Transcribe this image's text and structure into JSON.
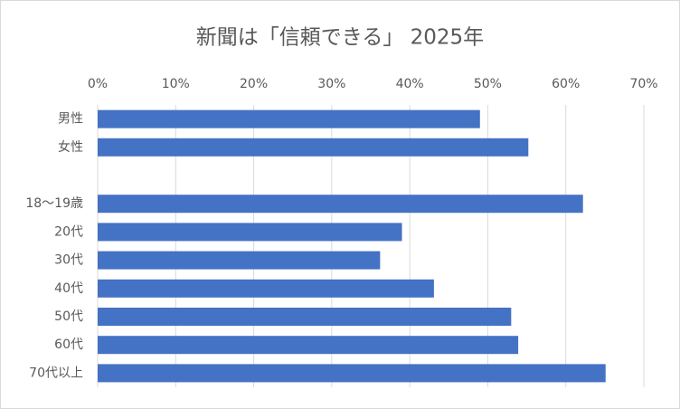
{
  "chart_data": {
    "type": "bar",
    "orientation": "horizontal",
    "title": "新聞は「信頼できる」 2025年",
    "categories": [
      "男性",
      "女性",
      null,
      "18〜19歳",
      "20代",
      "30代",
      "40代",
      "50代",
      "60代",
      "70代以上"
    ],
    "values": [
      49.0,
      55.2,
      null,
      62.2,
      39.0,
      36.2,
      43.1,
      53.0,
      53.9,
      65.1
    ],
    "color": "#4472c4",
    "xlim": [
      0,
      70
    ],
    "xticks": [
      {
        "value": 0,
        "label": "0%"
      },
      {
        "value": 10,
        "label": "10%"
      },
      {
        "value": 20,
        "label": "20%"
      },
      {
        "value": 30,
        "label": "30%"
      },
      {
        "value": 40,
        "label": "40%"
      },
      {
        "value": 50,
        "label": "50%"
      },
      {
        "value": 60,
        "label": "60%"
      },
      {
        "value": 70,
        "label": "70%"
      }
    ],
    "grid": true
  }
}
